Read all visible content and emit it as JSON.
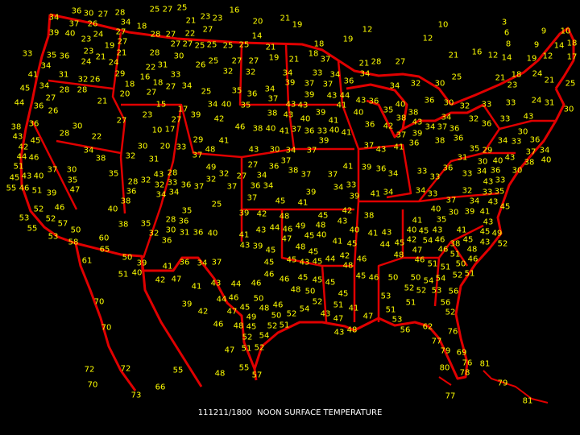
{
  "title": "111211/1800  NOON SURFACE TEMPERATURE",
  "colors": {
    "background": "#000000",
    "boundaries": "#e00000",
    "readings": "#ffff00",
    "title": "#ffffff"
  },
  "readings": [
    34,
    36,
    30,
    27,
    28,
    25,
    27,
    25,
    16,
    23,
    21,
    23,
    18,
    34,
    37,
    26,
    24,
    27,
    28,
    27,
    22,
    27,
    20,
    21,
    19,
    14,
    18,
    19,
    12,
    10,
    12,
    3,
    6,
    9,
    10,
    8,
    9,
    14,
    18,
    39,
    40,
    23,
    27,
    19,
    23,
    27,
    27,
    25,
    25,
    25,
    25,
    21,
    18,
    21,
    37,
    21,
    28,
    27,
    21,
    16,
    12,
    14,
    19,
    12,
    17,
    21,
    24,
    33,
    35,
    36,
    24,
    21,
    28,
    27,
    19,
    27,
    25,
    30,
    31,
    26,
    41,
    31,
    32,
    26,
    29,
    16,
    22,
    33,
    32,
    32,
    34,
    33,
    34,
    37,
    34,
    36,
    34,
    32,
    30,
    25,
    21,
    23,
    18,
    24,
    21,
    25,
    34,
    34,
    28,
    28,
    45,
    27,
    20,
    18,
    18,
    27,
    27,
    34,
    25,
    35,
    34,
    39,
    37,
    39,
    36,
    37,
    43,
    44,
    43,
    21,
    15,
    34,
    40,
    35,
    43,
    43,
    41,
    36,
    40,
    36,
    30,
    32,
    33,
    33,
    30,
    24,
    31,
    44,
    36,
    26,
    27,
    23,
    17,
    27,
    39,
    39,
    38,
    43,
    40,
    41,
    40,
    36,
    35,
    38,
    42,
    38,
    43,
    34,
    37,
    36,
    32,
    36,
    34,
    33,
    43,
    38,
    43,
    36,
    30,
    45,
    28,
    22,
    42,
    46,
    38,
    40,
    41,
    37,
    36,
    33,
    40,
    41,
    10,
    17,
    29,
    48,
    43,
    30,
    34,
    37,
    39,
    37,
    43,
    41,
    37,
    36,
    39,
    38,
    36,
    35,
    29,
    34,
    33,
    30,
    36,
    34,
    40,
    37,
    38,
    43,
    40,
    30,
    31,
    42,
    44,
    51,
    46,
    30,
    20,
    33,
    41,
    34,
    38,
    32,
    31,
    37,
    49,
    27,
    36,
    37,
    38,
    37,
    37,
    41,
    39,
    36,
    34,
    33,
    33,
    36,
    33,
    34,
    36,
    33,
    30,
    43,
    33,
    43,
    45,
    37,
    30,
    35,
    40,
    35,
    43,
    28,
    32,
    33,
    36,
    34,
    34,
    32,
    47,
    36,
    51,
    46,
    55,
    39,
    28,
    37,
    32,
    32,
    27,
    37,
    34,
    34,
    36,
    45,
    41,
    37,
    39,
    34,
    33,
    39,
    41,
    34,
    34,
    33,
    37,
    32,
    34,
    35,
    43,
    41,
    45,
    40,
    30,
    39,
    41,
    35,
    43,
    38,
    25,
    39,
    40,
    42,
    48,
    45,
    42,
    43,
    38,
    40,
    41,
    43,
    40,
    45,
    43,
    46,
    41,
    45,
    49,
    53,
    52,
    46,
    52,
    55,
    57,
    50,
    53,
    58,
    35,
    28,
    36,
    35,
    36,
    31,
    30,
    32,
    36,
    40,
    41,
    43,
    44,
    49,
    45,
    46,
    40,
    48,
    38,
    60,
    65,
    50,
    52,
    43,
    45,
    38,
    54,
    42,
    46,
    51,
    50,
    46,
    48,
    43,
    39,
    45,
    47,
    48,
    45,
    41,
    45,
    44,
    45,
    47,
    48,
    46,
    61,
    39,
    40,
    41,
    34,
    36,
    37,
    45,
    45,
    43,
    45,
    44,
    42,
    48,
    46,
    46,
    51,
    52,
    51,
    50,
    54,
    53,
    56,
    51,
    51,
    42,
    47,
    41,
    43,
    44,
    46,
    46,
    46,
    48,
    45,
    50,
    45,
    45,
    45,
    45,
    46,
    48,
    50,
    52,
    54,
    52,
    51,
    43,
    41,
    50,
    52,
    54,
    53,
    51,
    52,
    56,
    53,
    52,
    51,
    70,
    70,
    39,
    42,
    44,
    45,
    46,
    47,
    48,
    49,
    50,
    52,
    46,
    45,
    52,
    51,
    47,
    43,
    48,
    47,
    56,
    62,
    76,
    77,
    79,
    69,
    51,
    52,
    47,
    54,
    72,
    70,
    72,
    73,
    55,
    66,
    48,
    55,
    57,
    80,
    78,
    76,
    81,
    79,
    81,
    77
  ]
}
